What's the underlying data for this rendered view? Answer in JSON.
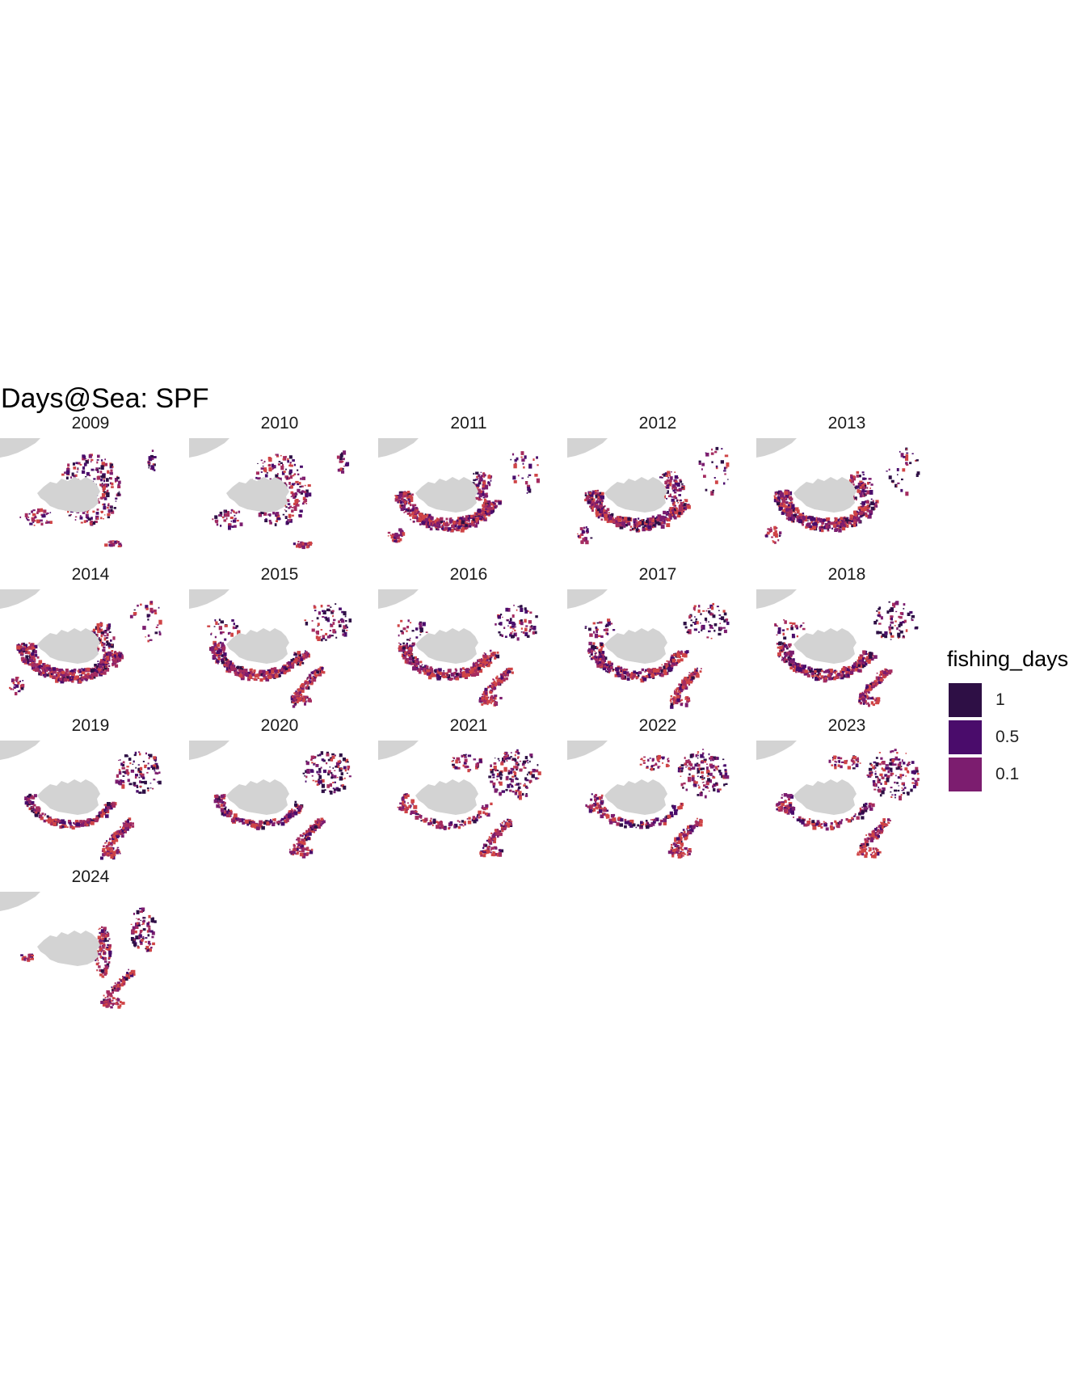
{
  "title": "Days@Sea:  SPF",
  "colors": {
    "land": "#d3d3d3",
    "greenland": "#d3d3d3",
    "high": "#2e0f45",
    "mid": "#4a0c6b",
    "low": "#7c1d6f",
    "lower": "#a52c60",
    "lowest": "#cf4446"
  },
  "panels": [
    {
      "year": "2009",
      "pattern": "east"
    },
    {
      "year": "2010",
      "pattern": "east"
    },
    {
      "year": "2011",
      "pattern": "ring"
    },
    {
      "year": "2012",
      "pattern": "ring"
    },
    {
      "year": "2013",
      "pattern": "ring"
    },
    {
      "year": "2014",
      "pattern": "ring"
    },
    {
      "year": "2015",
      "pattern": "ring-se"
    },
    {
      "year": "2016",
      "pattern": "ring-se"
    },
    {
      "year": "2017",
      "pattern": "ring-se"
    },
    {
      "year": "2018",
      "pattern": "ring-se"
    },
    {
      "year": "2019",
      "pattern": "south-se"
    },
    {
      "year": "2020",
      "pattern": "south-se"
    },
    {
      "year": "2021",
      "pattern": "scatter-se"
    },
    {
      "year": "2022",
      "pattern": "scatter-se"
    },
    {
      "year": "2023",
      "pattern": "scatter-se"
    },
    {
      "year": "2024",
      "pattern": "east-se"
    }
  ],
  "legend": {
    "title": "fishing_days",
    "entries": [
      {
        "label": "1",
        "color": "#2e0f45"
      },
      {
        "label": "0.5",
        "color": "#4a0c6b"
      },
      {
        "label": "0.1",
        "color": "#7c1d6f"
      }
    ]
  }
}
